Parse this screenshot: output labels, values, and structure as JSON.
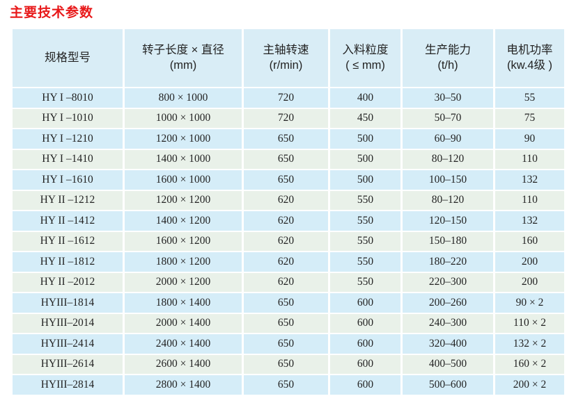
{
  "page": {
    "title": "主要技术参数"
  },
  "colors": {
    "title_red": "#e8191a",
    "header_bg": "#d9edf6",
    "row_blue": "#d5edf8",
    "row_green": "#e9f1e9",
    "text": "#232323"
  },
  "table": {
    "columns": [
      {
        "key": "model",
        "lines": [
          "规格型号"
        ]
      },
      {
        "key": "rotor-size",
        "lines": [
          "转子长度 × 直径",
          "(mm)"
        ]
      },
      {
        "key": "shaft-speed",
        "lines": [
          "主轴转速",
          "(r/min)"
        ]
      },
      {
        "key": "feed-size",
        "lines": [
          "入料粒度",
          "( ≤ mm)"
        ]
      },
      {
        "key": "capacity",
        "lines": [
          "生产能力",
          "(t/h)"
        ]
      },
      {
        "key": "motor-power",
        "lines": [
          "电机功率",
          "(kw.4级 )"
        ]
      }
    ],
    "rows": [
      [
        "HY I –8010",
        "800 × 1000",
        "720",
        "400",
        "30–50",
        "55"
      ],
      [
        "HY I –1010",
        "1000 × 1000",
        "720",
        "450",
        "50–70",
        "75"
      ],
      [
        "HY I –1210",
        "1200 × 1000",
        "650",
        "500",
        "60–90",
        "90"
      ],
      [
        "HY I –1410",
        "1400 × 1000",
        "650",
        "500",
        "80–120",
        "110"
      ],
      [
        "HY I –1610",
        "1600 × 1000",
        "650",
        "500",
        "100–150",
        "132"
      ],
      [
        "HY II –1212",
        "1200 × 1200",
        "620",
        "550",
        "80–120",
        "110"
      ],
      [
        "HY II –1412",
        "1400 × 1200",
        "620",
        "550",
        "120–150",
        "132"
      ],
      [
        "HY II –1612",
        "1600 × 1200",
        "620",
        "550",
        "150–180",
        "160"
      ],
      [
        "HY II –1812",
        "1800 × 1200",
        "620",
        "550",
        "180–220",
        "200"
      ],
      [
        "HY II –2012",
        "2000 × 1200",
        "620",
        "550",
        "220–300",
        "200"
      ],
      [
        "HYIII–1814",
        "1800 × 1400",
        "650",
        "600",
        "200–260",
        "90 × 2"
      ],
      [
        "HYIII–2014",
        "2000 × 1400",
        "650",
        "600",
        "240–300",
        "110 × 2"
      ],
      [
        "HYIII–2414",
        "2400 × 1400",
        "650",
        "600",
        "320–400",
        "132 × 2"
      ],
      [
        "HYIII–2614",
        "2600 × 1400",
        "650",
        "600",
        "400–500",
        "160 × 2"
      ],
      [
        "HYIII–2814",
        "2800 × 1400",
        "650",
        "600",
        "500–600",
        "200 × 2"
      ]
    ]
  }
}
